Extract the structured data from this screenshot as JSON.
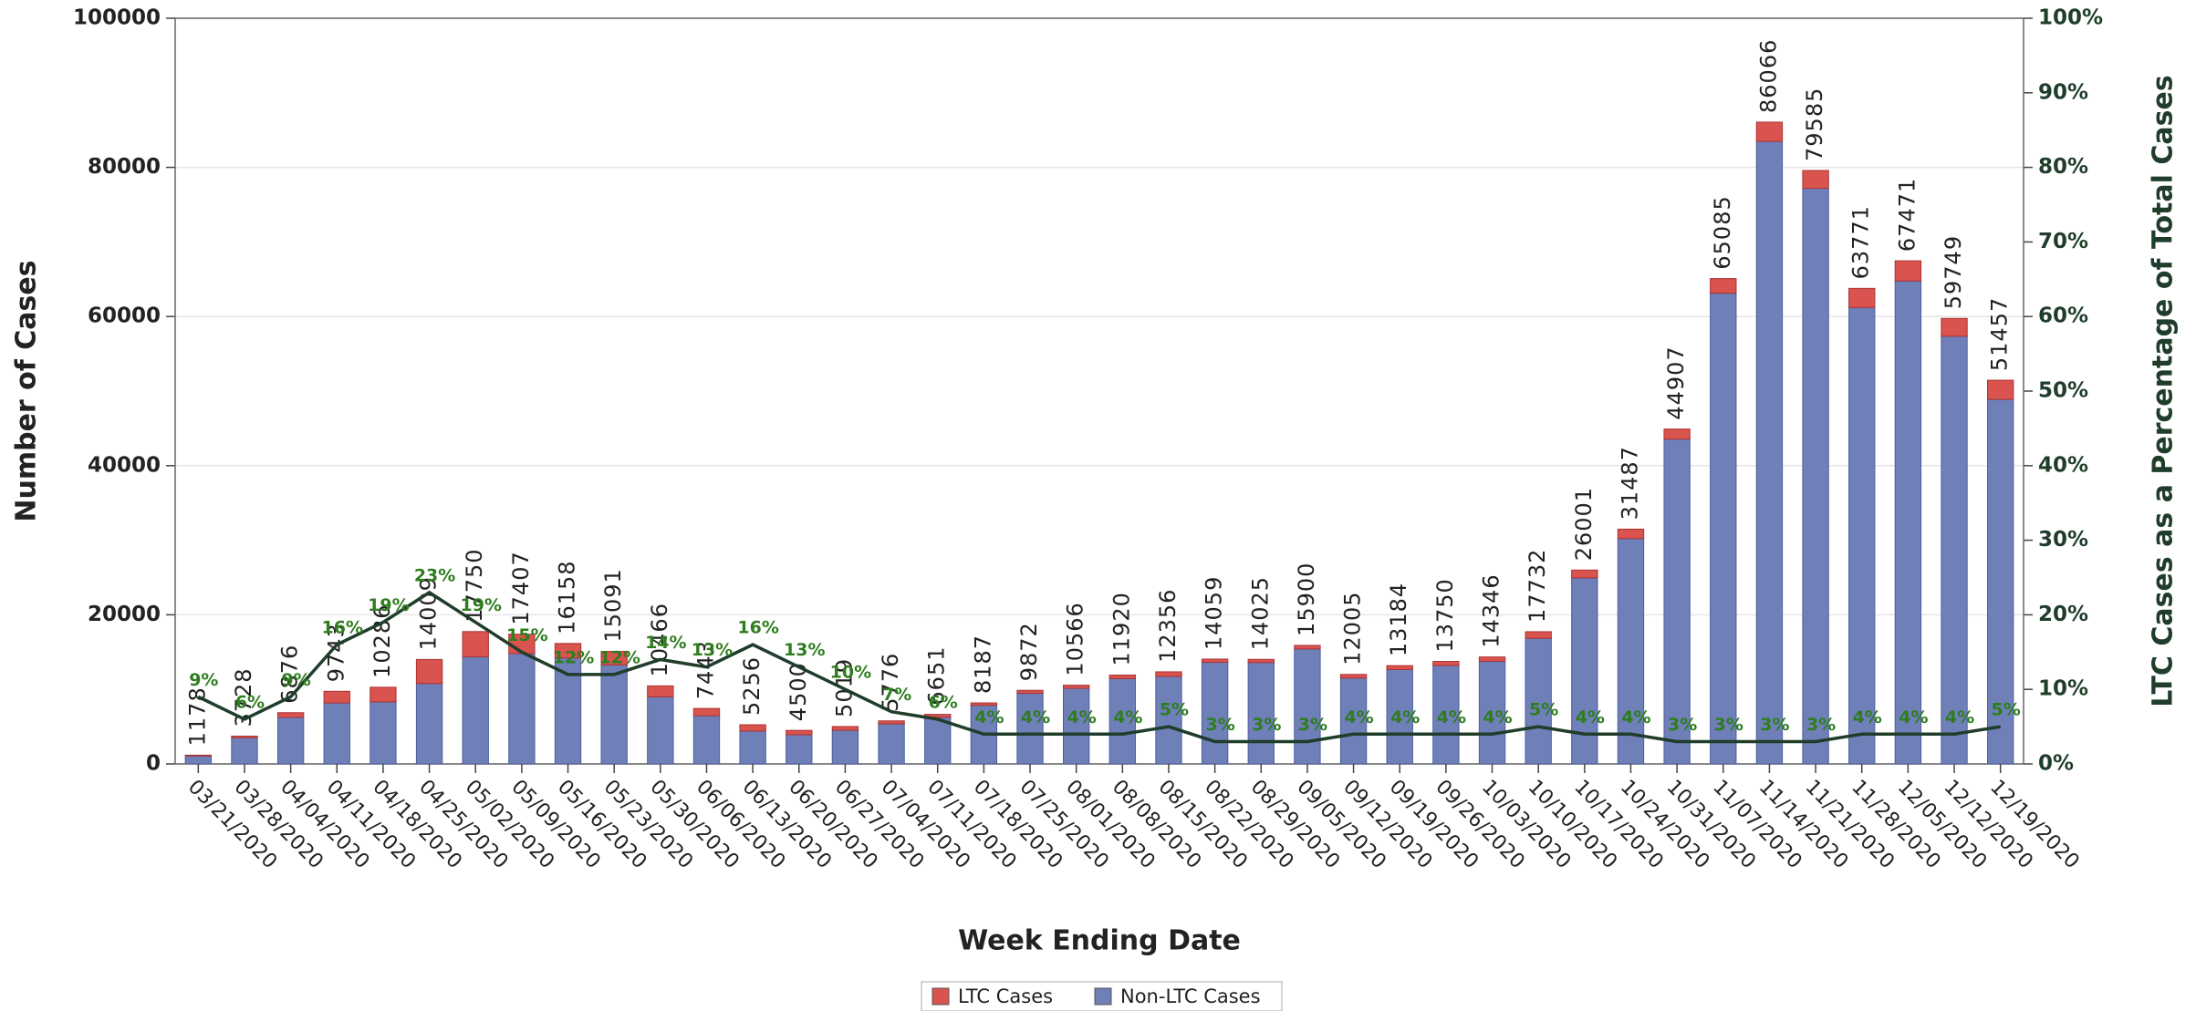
{
  "chart_data": {
    "type": "bar",
    "xlabel": "Week Ending Date",
    "ylabel": "Number of Cases",
    "y2label": "LTC Cases as a Percentage of Total Cases",
    "categories": [
      "03/21/2020",
      "03/28/2020",
      "04/04/2020",
      "04/11/2020",
      "04/18/2020",
      "04/25/2020",
      "05/02/2020",
      "05/09/2020",
      "05/16/2020",
      "05/23/2020",
      "05/30/2020",
      "06/06/2020",
      "06/13/2020",
      "06/20/2020",
      "06/27/2020",
      "07/04/2020",
      "07/11/2020",
      "07/18/2020",
      "07/25/2020",
      "08/01/2020",
      "08/08/2020",
      "08/15/2020",
      "08/22/2020",
      "08/29/2020",
      "09/05/2020",
      "09/12/2020",
      "09/19/2020",
      "09/26/2020",
      "10/03/2020",
      "10/10/2020",
      "10/17/2020",
      "10/24/2020",
      "10/31/2020",
      "11/07/2020",
      "11/14/2020",
      "11/21/2020",
      "11/28/2020",
      "12/05/2020",
      "12/12/2020",
      "12/19/2020"
    ],
    "series": [
      {
        "name": "LTC Cases",
        "color": "#d9534f",
        "values": [
          106,
          224,
          619,
          1559,
          1954,
          3222,
          3373,
          2611,
          1939,
          1811,
          1465,
          968,
          841,
          585,
          502,
          404,
          399,
          327,
          395,
          423,
          477,
          618,
          422,
          421,
          477,
          480,
          527,
          550,
          574,
          887,
          1040,
          1259,
          1347,
          1953,
          2582,
          2388,
          2551,
          2699,
          2390,
          2573
        ]
      },
      {
        "name": "Non-LTC Cases",
        "color": "#6f7fb8",
        "values": [
          1072,
          3504,
          6257,
          8184,
          8332,
          10787,
          14377,
          14796,
          14219,
          13280,
          9001,
          6475,
          4415,
          3915,
          4517,
          5372,
          6252,
          7860,
          9477,
          10143,
          11443,
          11738,
          13637,
          13604,
          15423,
          11525,
          12657,
          13200,
          13772,
          16845,
          24961,
          30228,
          43560,
          63132,
          83484,
          77197,
          61220,
          64772,
          57359,
          48884
        ]
      }
    ],
    "totals": [
      1178,
      3728,
      6876,
      9743,
      10286,
      14009,
      17750,
      17407,
      16158,
      15091,
      10466,
      7443,
      5256,
      4500,
      5019,
      5776,
      6651,
      8187,
      9872,
      10566,
      11920,
      12356,
      14059,
      14025,
      15900,
      12005,
      13184,
      13750,
      14346,
      17732,
      26001,
      31487,
      44907,
      65085,
      86066,
      79585,
      63771,
      67471,
      59749,
      51457
    ],
    "percent": {
      "color": "#1f3d2a",
      "label_color": "#2e7d1e",
      "axis": "y2",
      "values": [
        9,
        6,
        9,
        16,
        19,
        23,
        19,
        15,
        12,
        12,
        14,
        13,
        16,
        13,
        10,
        7,
        6,
        4,
        4,
        4,
        4,
        5,
        3,
        3,
        3,
        4,
        4,
        4,
        4,
        5,
        4,
        4,
        3,
        3,
        3,
        3,
        4,
        4,
        4,
        5
      ],
      "value_labels": [
        "9%",
        "6%",
        "9%",
        "16%",
        "19%",
        "23%",
        "19%",
        "15%",
        "12%",
        "12%",
        "14%",
        "13%",
        "16%",
        "13%",
        "10%",
        "7%",
        "6%",
        "4%",
        "4%",
        "4%",
        "4%",
        "5%",
        "3%",
        "3%",
        "3%",
        "4%",
        "4%",
        "4%",
        "4%",
        "5%",
        "4%",
        "4%",
        "3%",
        "3%",
        "3%",
        "3%",
        "4%",
        "4%",
        "4%",
        "5%"
      ]
    },
    "ylim": [
      0,
      100000
    ],
    "yticks": [
      0,
      20000,
      40000,
      60000,
      80000,
      100000
    ],
    "y2lim": [
      0,
      100
    ],
    "y2ticks": [
      {
        "value": 0,
        "label": "0%"
      },
      {
        "value": 10,
        "label": "10%"
      },
      {
        "value": 20,
        "label": "20%"
      },
      {
        "value": 30,
        "label": "30%"
      },
      {
        "value": 40,
        "label": "40%"
      },
      {
        "value": 50,
        "label": "50%"
      },
      {
        "value": 60,
        "label": "60%"
      },
      {
        "value": 70,
        "label": "70%"
      },
      {
        "value": 80,
        "label": "80%"
      },
      {
        "value": 90,
        "label": "90%"
      },
      {
        "value": 100,
        "label": "100%"
      }
    ],
    "grid": true,
    "legend": "bottom"
  }
}
